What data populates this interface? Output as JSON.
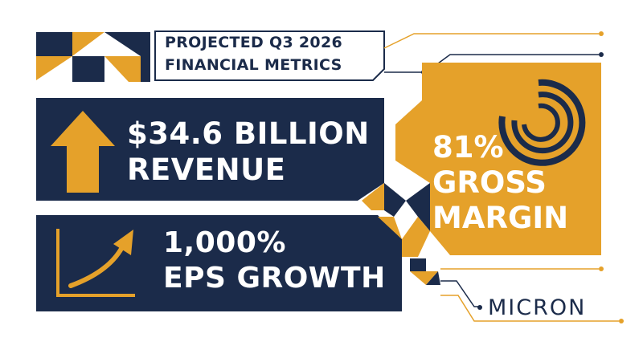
{
  "colors": {
    "navy": "#1b2b4a",
    "gold": "#e5a12a",
    "white": "#ffffff"
  },
  "title": {
    "line1": "PROJECTED Q3 2026",
    "line2": "FINANCIAL METRICS"
  },
  "metrics": {
    "revenue": {
      "line1": "$34.6 BILLION",
      "line2": "REVENUE",
      "icon": "up-arrow-icon"
    },
    "eps": {
      "line1": "1,000%",
      "line2": "EPS GROWTH",
      "icon": "growth-chart-icon"
    },
    "gross_margin": {
      "line1": "81%",
      "line2": "GROSS",
      "line3": "MARGIN",
      "icon": "concentric-arcs-icon"
    }
  },
  "brand": {
    "logo": "MICRON"
  }
}
